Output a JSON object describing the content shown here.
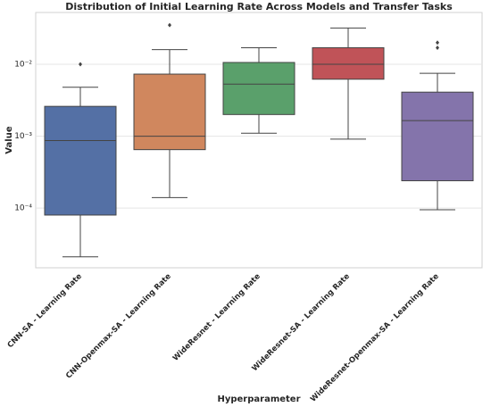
{
  "chart_data": {
    "type": "box",
    "title": "Distribution of Initial Learning Rate Across Models and Transfer Tasks",
    "x_label": "Hyperparameter",
    "y_label": "Value",
    "log_y": true,
    "grid": true,
    "ylim": [
      1.48e-05,
      0.0525
    ],
    "yticks": [
      {
        "value": 0.0001,
        "label": "10⁻⁴"
      },
      {
        "value": 0.001,
        "label": "10⁻³"
      },
      {
        "value": 0.01,
        "label": "10⁻²"
      }
    ],
    "categories": [
      "CNN-SA - Learning Rate",
      "CNN-Openmax-SA - Learning Rate",
      "WideResnet - Learning Rate",
      "WideResnet-SA - Learning Rate",
      "WideResnet-Openmax-SA - Learning Rate"
    ],
    "boxes": [
      {
        "color": "#5470a5",
        "whislo": 2.1e-05,
        "q1": 8e-05,
        "med": 0.00087,
        "q3": 0.0026,
        "whishi": 0.0048,
        "fliers": [
          0.01
        ]
      },
      {
        "color": "#d0875e",
        "whislo": 0.00014,
        "q1": 0.00065,
        "med": 0.001,
        "q3": 0.0073,
        "whishi": 0.016,
        "fliers": [
          0.035
        ]
      },
      {
        "color": "#5aa06b",
        "whislo": 0.0011,
        "q1": 0.002,
        "med": 0.0053,
        "q3": 0.0106,
        "whishi": 0.017,
        "fliers": []
      },
      {
        "color": "#c05358",
        "whislo": 0.00091,
        "q1": 0.0062,
        "med": 0.01,
        "q3": 0.017,
        "whishi": 0.032,
        "fliers": []
      },
      {
        "color": "#8474ab",
        "whislo": 9.5e-05,
        "q1": 0.00024,
        "med": 0.00165,
        "q3": 0.0041,
        "whishi": 0.0075,
        "fliers": [
          0.02,
          0.017
        ]
      }
    ]
  }
}
